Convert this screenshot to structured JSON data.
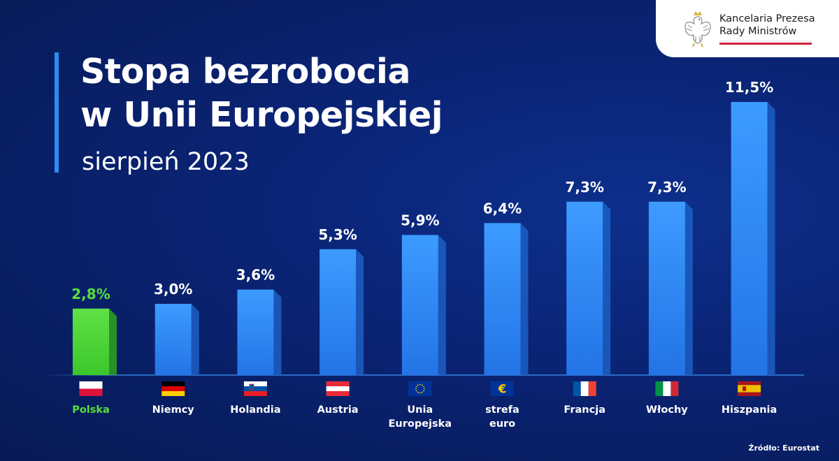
{
  "header": {
    "title_line1": "Stopa bezrobocia",
    "title_line2": "w Unii Europejskiej",
    "subtitle": "sierpień 2023"
  },
  "logo": {
    "line1": "Kancelaria Prezesa",
    "line2": "Rady Ministrów",
    "emblem": "polish-eagle-emblem"
  },
  "source": "Źródło: Eurostat",
  "colors": {
    "background": "#0a2373",
    "bar": "#2f8ef5",
    "highlight_bar": "#4fd83a",
    "highlight_text": "#57e03c"
  },
  "chart_data": {
    "type": "bar",
    "categories": [
      "Polska",
      "Niemcy",
      "Holandia",
      "Austria",
      "Unia Europejska",
      "strefa euro",
      "Francja",
      "Włochy",
      "Hiszpania"
    ],
    "category_lines": [
      [
        "Polska"
      ],
      [
        "Niemcy"
      ],
      [
        "Holandia"
      ],
      [
        "Austria"
      ],
      [
        "Unia",
        "Europejska"
      ],
      [
        "strefa",
        "euro"
      ],
      [
        "Francja"
      ],
      [
        "Włochy"
      ],
      [
        "Hiszpania"
      ]
    ],
    "values": [
      2.8,
      3.0,
      3.6,
      5.3,
      5.9,
      6.4,
      7.3,
      7.3,
      11.5
    ],
    "value_labels": [
      "2,8%",
      "3,0%",
      "3,6%",
      "5,3%",
      "5,9%",
      "6,4%",
      "7,3%",
      "7,3%",
      "11,5%"
    ],
    "flags": [
      "poland-flag",
      "germany-flag",
      "slovenia-flag",
      "austria-flag",
      "eu-flag",
      "euro-symbol-flag",
      "france-flag",
      "italy-flag",
      "spain-flag"
    ],
    "highlight": "Polska",
    "unit": "%",
    "ylim": [
      0,
      11.5
    ],
    "grid": false,
    "legend": "none"
  }
}
